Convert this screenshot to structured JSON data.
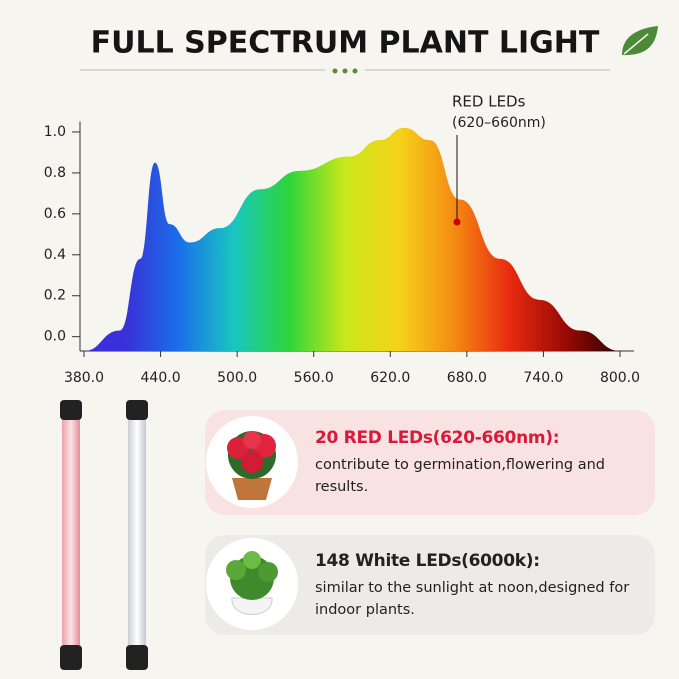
{
  "header": {
    "title": "FULL SPECTRUM PLANT LIGHT"
  },
  "chart_data": {
    "type": "area",
    "x": [
      380,
      408,
      424,
      435.6,
      447,
      463,
      486.5,
      518,
      549,
      588,
      611.6,
      631,
      651,
      674.5,
      706,
      737,
      769,
      800
    ],
    "y": [
      -0.07,
      0.03,
      0.38,
      0.85,
      0.55,
      0.46,
      0.53,
      0.72,
      0.81,
      0.88,
      0.96,
      1.02,
      0.96,
      0.67,
      0.38,
      0.18,
      0.03,
      -0.07
    ],
    "colors": [
      "#3a2fd8",
      "#1a6fe8",
      "#19c7c0",
      "#2fd43a",
      "#c8e81a",
      "#f5d21a",
      "#f58a12",
      "#e82a10",
      "#9a0a05",
      "#2a0200"
    ],
    "xlim": [
      380,
      800
    ],
    "ylim": [
      -0.07,
      1.1
    ],
    "xticks": [
      {
        "value": 380,
        "label": "380.0"
      },
      {
        "value": 440,
        "label": "440.0"
      },
      {
        "value": 500,
        "label": "500.0"
      },
      {
        "value": 560,
        "label": "560.0"
      },
      {
        "value": 620,
        "label": "620.0"
      },
      {
        "value": 680,
        "label": "680.0"
      },
      {
        "value": 740,
        "label": "740.0"
      },
      {
        "value": 800,
        "label": "800.0"
      }
    ],
    "yticks": [
      {
        "value": 0,
        "label": "0.0"
      },
      0.2,
      0.4,
      0.6,
      0.8,
      {
        "value": 1,
        "label": "1.0"
      }
    ],
    "annotation": {
      "title": "RED LEDs",
      "range": "(620–660nm)"
    }
  },
  "cards": [
    {
      "heading": "20 RED LEDs(620-660nm):",
      "text": "contribute to germination,flowering and results."
    },
    {
      "heading": "148 White LEDs(6000k):",
      "text": "similar to the sunlight at noon,designed for indoor plants."
    }
  ]
}
